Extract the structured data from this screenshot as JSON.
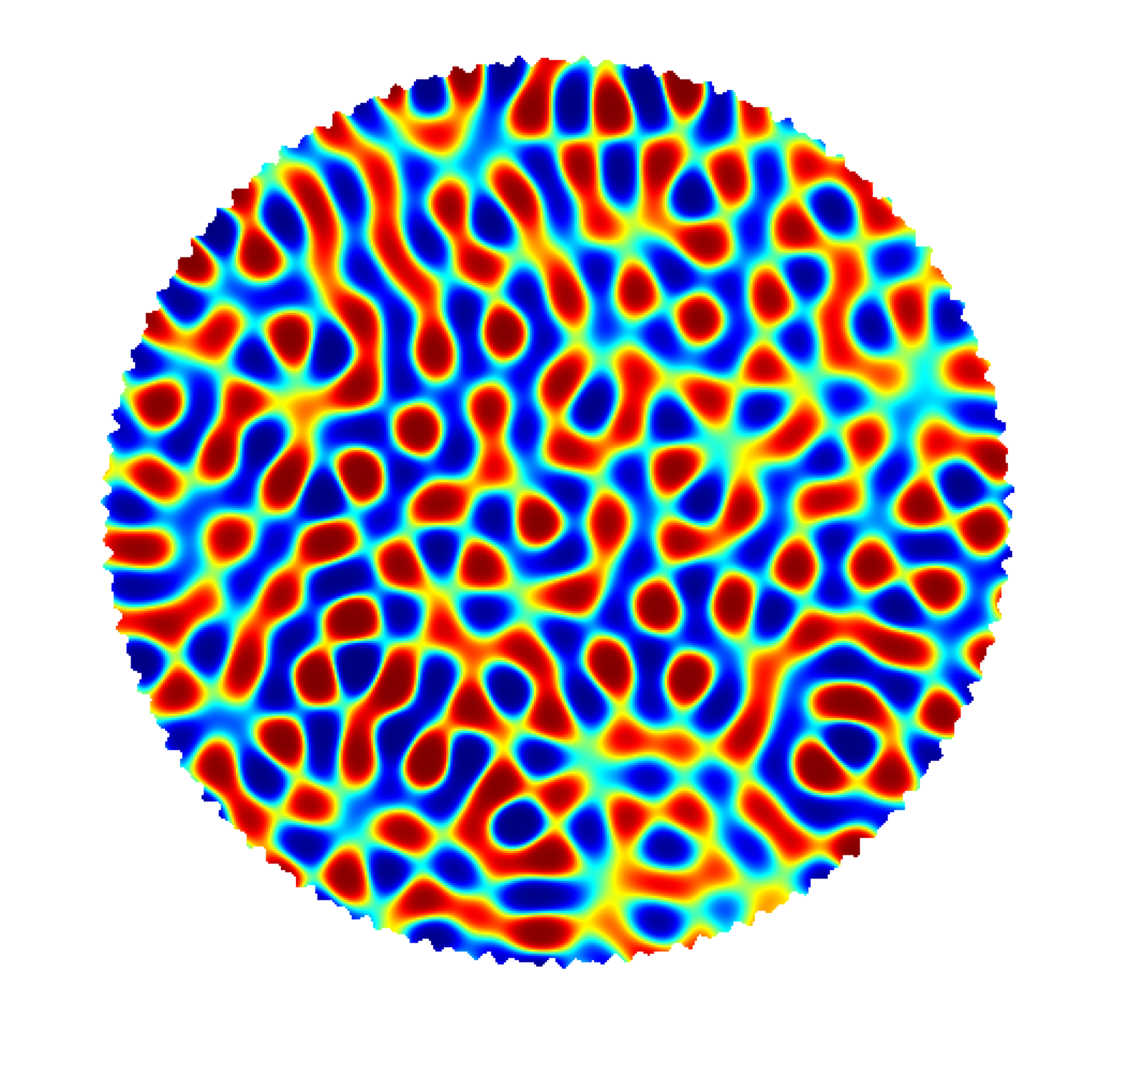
{
  "figure": {
    "shape": "disk",
    "colormap": "jet",
    "colormap_stops": [
      "#00008f",
      "#0000ff",
      "#00ffff",
      "#ffff00",
      "#ff0000",
      "#800000"
    ],
    "background": "#ffffff",
    "pattern": "random-field",
    "random_seed": 20240513
  }
}
